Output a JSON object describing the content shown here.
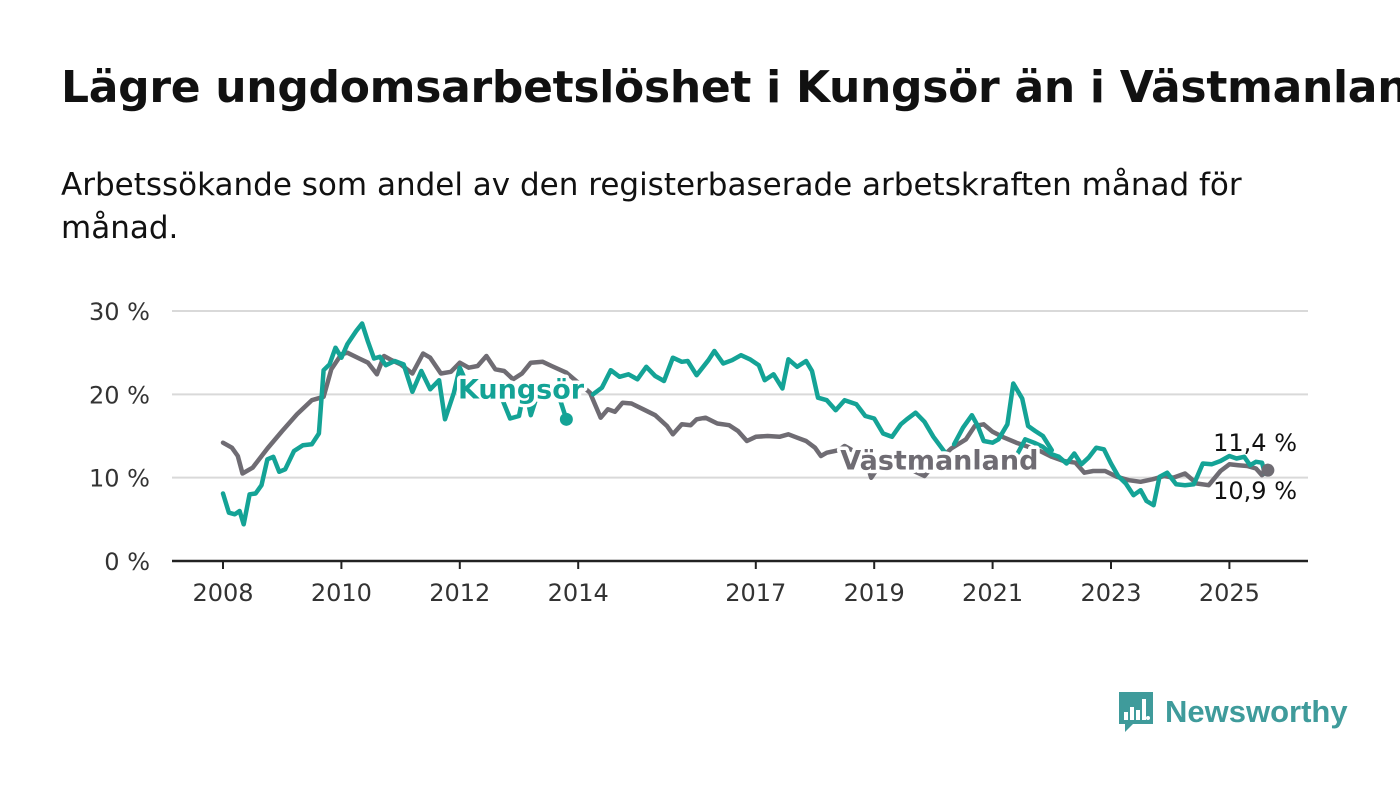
{
  "title": "Lägre ungdomsarbetslöshet i Kungsör än i Västmanland",
  "subtitle": "Arbetssökande som andel av den registerbaserade arbetskraften månad för månad.",
  "brand": {
    "name": "Newsworthy",
    "icon": "bar-chart-speech-bubble-icon",
    "color": "#3f9b9b"
  },
  "chart_data": {
    "type": "line",
    "title": "Lägre ungdomsarbetslöshet i Kungsör än i Västmanland",
    "ylabel": "",
    "xlabel": "",
    "ylim": [
      0,
      30
    ],
    "xlim": [
      2007.2,
      2026.4
    ],
    "y_ticks": [
      0,
      10,
      20,
      30
    ],
    "y_tick_labels": [
      "0 %",
      "10 %",
      "20 %",
      "30 %"
    ],
    "x_ticks": [
      2008,
      2010,
      2012,
      2014,
      2017,
      2019,
      2021,
      2023,
      2025
    ],
    "x_tick_labels": [
      "2008",
      "2010",
      "2012",
      "2014",
      "2017",
      "2019",
      "2021",
      "2023",
      "2025"
    ],
    "grid": "horizontal",
    "legend": "inline labels",
    "series": [
      {
        "name": "Västmanland",
        "color": "#6f6c73",
        "end_label": "10,9 %",
        "points": [
          [
            2008.0,
            14.2
          ],
          [
            2008.15,
            13.6
          ],
          [
            2008.25,
            12.6
          ],
          [
            2008.33,
            10.5
          ],
          [
            2008.5,
            11.2
          ],
          [
            2008.75,
            13.5
          ],
          [
            2009.0,
            15.6
          ],
          [
            2009.25,
            17.6
          ],
          [
            2009.5,
            19.3
          ],
          [
            2009.7,
            19.7
          ],
          [
            2009.83,
            23.0
          ],
          [
            2010.0,
            24.8
          ],
          [
            2010.1,
            25.0
          ],
          [
            2010.3,
            24.3
          ],
          [
            2010.45,
            23.8
          ],
          [
            2010.6,
            22.4
          ],
          [
            2010.72,
            24.6
          ],
          [
            2010.85,
            24.1
          ],
          [
            2011.0,
            23.6
          ],
          [
            2011.2,
            22.5
          ],
          [
            2011.38,
            24.9
          ],
          [
            2011.5,
            24.4
          ],
          [
            2011.68,
            22.5
          ],
          [
            2011.85,
            22.7
          ],
          [
            2012.0,
            23.8
          ],
          [
            2012.15,
            23.2
          ],
          [
            2012.3,
            23.4
          ],
          [
            2012.45,
            24.6
          ],
          [
            2012.6,
            23.0
          ],
          [
            2012.75,
            22.8
          ],
          [
            2012.9,
            21.8
          ],
          [
            2013.05,
            22.5
          ],
          [
            2013.2,
            23.8
          ],
          [
            2013.4,
            23.9
          ],
          [
            2013.55,
            23.4
          ],
          [
            2013.8,
            22.6
          ],
          [
            2014.0,
            21.4
          ],
          [
            2014.2,
            20.2
          ],
          [
            2014.38,
            17.2
          ],
          [
            2014.5,
            18.2
          ],
          [
            2014.62,
            17.9
          ],
          [
            2014.75,
            19.0
          ],
          [
            2014.9,
            18.9
          ],
          [
            2015.1,
            18.2
          ],
          [
            2015.3,
            17.5
          ],
          [
            2015.5,
            16.2
          ],
          [
            2015.6,
            15.2
          ],
          [
            2015.75,
            16.4
          ],
          [
            2015.9,
            16.3
          ],
          [
            2016.0,
            17.0
          ],
          [
            2016.15,
            17.2
          ],
          [
            2016.35,
            16.5
          ],
          [
            2016.55,
            16.3
          ],
          [
            2016.7,
            15.6
          ],
          [
            2016.85,
            14.4
          ],
          [
            2017.0,
            14.9
          ],
          [
            2017.2,
            15.0
          ],
          [
            2017.4,
            14.9
          ],
          [
            2017.55,
            15.2
          ],
          [
            2017.7,
            14.8
          ],
          [
            2017.85,
            14.4
          ],
          [
            2018.0,
            13.6
          ],
          [
            2018.1,
            12.6
          ],
          [
            2018.2,
            13.0
          ],
          [
            2018.4,
            13.3
          ],
          [
            2018.5,
            13.8
          ],
          [
            2018.65,
            13.2
          ],
          [
            2018.85,
            12.3
          ],
          [
            2018.95,
            10.0
          ],
          [
            2019.1,
            11.6
          ],
          [
            2019.3,
            12.0
          ],
          [
            2019.5,
            11.4
          ],
          [
            2019.7,
            10.7
          ],
          [
            2019.85,
            10.2
          ],
          [
            2020.0,
            11.5
          ],
          [
            2020.3,
            13.5
          ],
          [
            2020.55,
            14.6
          ],
          [
            2020.7,
            16.2
          ],
          [
            2020.85,
            16.4
          ],
          [
            2021.0,
            15.5
          ],
          [
            2021.2,
            14.8
          ],
          [
            2021.4,
            14.2
          ],
          [
            2021.6,
            13.7
          ],
          [
            2021.8,
            13.2
          ],
          [
            2022.0,
            12.5
          ],
          [
            2022.2,
            12.0
          ],
          [
            2022.4,
            11.8
          ],
          [
            2022.55,
            10.6
          ],
          [
            2022.7,
            10.8
          ],
          [
            2022.9,
            10.8
          ],
          [
            2023.1,
            10.1
          ],
          [
            2023.3,
            9.7
          ],
          [
            2023.5,
            9.5
          ],
          [
            2023.7,
            9.8
          ],
          [
            2023.9,
            10.2
          ],
          [
            2024.05,
            10.0
          ],
          [
            2024.25,
            10.5
          ],
          [
            2024.45,
            9.3
          ],
          [
            2024.65,
            9.1
          ],
          [
            2024.85,
            10.8
          ],
          [
            2025.0,
            11.6
          ],
          [
            2025.15,
            11.5
          ],
          [
            2025.3,
            11.4
          ],
          [
            2025.45,
            11.1
          ],
          [
            2025.55,
            10.3
          ],
          [
            2025.65,
            10.9
          ]
        ]
      },
      {
        "name": "Kungsör",
        "color": "#14a396",
        "end_label": "11,4 %",
        "points": [
          [
            2008.0,
            8.1
          ],
          [
            2008.1,
            5.8
          ],
          [
            2008.2,
            5.6
          ],
          [
            2008.28,
            6.0
          ],
          [
            2008.35,
            4.4
          ],
          [
            2008.45,
            8.0
          ],
          [
            2008.55,
            8.1
          ],
          [
            2008.65,
            9.1
          ],
          [
            2008.75,
            12.2
          ],
          [
            2008.85,
            12.5
          ],
          [
            2008.95,
            10.7
          ],
          [
            2009.05,
            11.0
          ],
          [
            2009.2,
            13.2
          ],
          [
            2009.35,
            13.9
          ],
          [
            2009.5,
            14.0
          ],
          [
            2009.62,
            15.3
          ],
          [
            2009.7,
            22.9
          ],
          [
            2009.8,
            23.6
          ],
          [
            2009.9,
            25.6
          ],
          [
            2010.0,
            24.4
          ],
          [
            2010.1,
            26.0
          ],
          [
            2010.25,
            27.6
          ],
          [
            2010.35,
            28.5
          ],
          [
            2010.45,
            26.3
          ],
          [
            2010.55,
            24.3
          ],
          [
            2010.65,
            24.5
          ],
          [
            2010.75,
            23.5
          ],
          [
            2010.9,
            24.0
          ],
          [
            2011.05,
            23.6
          ],
          [
            2011.2,
            20.3
          ],
          [
            2011.35,
            22.8
          ],
          [
            2011.5,
            20.6
          ],
          [
            2011.65,
            21.7
          ],
          [
            2011.75,
            17.0
          ],
          [
            2011.9,
            20.2
          ],
          [
            2012.0,
            23.2
          ],
          [
            2012.15,
            20.8
          ],
          [
            2012.3,
            21.5
          ],
          [
            2012.45,
            19.8
          ],
          [
            2012.55,
            21.4
          ],
          [
            2012.7,
            19.7
          ],
          [
            2012.85,
            17.1
          ],
          [
            2013.0,
            17.4
          ],
          [
            2013.1,
            20.9
          ],
          [
            2013.2,
            17.5
          ],
          [
            2013.35,
            20.8
          ],
          [
            2013.5,
            20.0
          ],
          [
            2013.65,
            20.3
          ],
          [
            2013.8,
            17.0
          ]
        ]
      },
      {
        "name": "Kungsör",
        "color": "#14a396",
        "points": [
          [
            2014.25,
            20.0
          ],
          [
            2014.4,
            20.8
          ],
          [
            2014.55,
            22.9
          ],
          [
            2014.7,
            22.1
          ],
          [
            2014.85,
            22.4
          ],
          [
            2015.0,
            21.8
          ],
          [
            2015.15,
            23.3
          ],
          [
            2015.3,
            22.2
          ],
          [
            2015.45,
            21.6
          ],
          [
            2015.6,
            24.4
          ],
          [
            2015.75,
            23.9
          ],
          [
            2015.85,
            24.0
          ],
          [
            2016.0,
            22.3
          ],
          [
            2016.2,
            24.1
          ],
          [
            2016.3,
            25.2
          ],
          [
            2016.45,
            23.7
          ],
          [
            2016.6,
            24.1
          ],
          [
            2016.75,
            24.7
          ],
          [
            2016.9,
            24.2
          ],
          [
            2017.05,
            23.5
          ],
          [
            2017.15,
            21.7
          ],
          [
            2017.3,
            22.4
          ],
          [
            2017.45,
            20.7
          ],
          [
            2017.55,
            24.2
          ],
          [
            2017.7,
            23.3
          ],
          [
            2017.85,
            24.0
          ],
          [
            2017.95,
            22.8
          ],
          [
            2018.05,
            19.6
          ],
          [
            2018.2,
            19.3
          ],
          [
            2018.35,
            18.1
          ],
          [
            2018.5,
            19.3
          ],
          [
            2018.7,
            18.8
          ],
          [
            2018.85,
            17.4
          ],
          [
            2019.0,
            17.1
          ],
          [
            2019.15,
            15.3
          ],
          [
            2019.3,
            14.9
          ],
          [
            2019.45,
            16.4
          ],
          [
            2019.55,
            17.0
          ],
          [
            2019.7,
            17.8
          ],
          [
            2019.85,
            16.7
          ],
          [
            2020.0,
            14.9
          ],
          [
            2020.2,
            13.0
          ]
        ]
      },
      {
        "name": "Kungsör",
        "color": "#14a396",
        "points": [
          [
            2020.35,
            14.0
          ],
          [
            2020.5,
            16.0
          ],
          [
            2020.65,
            17.5
          ],
          [
            2020.75,
            16.2
          ],
          [
            2020.85,
            14.4
          ],
          [
            2021.0,
            14.2
          ],
          [
            2021.1,
            14.6
          ],
          [
            2021.25,
            16.4
          ],
          [
            2021.35,
            21.3
          ],
          [
            2021.5,
            19.5
          ],
          [
            2021.6,
            16.2
          ],
          [
            2021.72,
            15.6
          ],
          [
            2021.85,
            15.0
          ],
          [
            2022.0,
            13.3
          ]
        ]
      },
      {
        "name": "Kungsör",
        "color": "#14a396",
        "points": [
          [
            2021.4,
            12.6
          ],
          [
            2021.55,
            14.6
          ],
          [
            2021.7,
            14.2
          ],
          [
            2021.85,
            13.7
          ],
          [
            2022.0,
            12.8
          ],
          [
            2022.12,
            12.5
          ],
          [
            2022.25,
            11.7
          ],
          [
            2022.38,
            12.9
          ],
          [
            2022.5,
            11.6
          ],
          [
            2022.62,
            12.4
          ],
          [
            2022.75,
            13.6
          ],
          [
            2022.88,
            13.4
          ],
          [
            2023.0,
            11.7
          ],
          [
            2023.12,
            10.2
          ],
          [
            2023.25,
            9.3
          ],
          [
            2023.38,
            7.9
          ],
          [
            2023.5,
            8.5
          ],
          [
            2023.6,
            7.2
          ],
          [
            2023.72,
            6.7
          ],
          [
            2023.82,
            10.1
          ],
          [
            2023.95,
            10.6
          ],
          [
            2024.1,
            9.2
          ],
          [
            2024.25,
            9.1
          ],
          [
            2024.4,
            9.2
          ],
          [
            2024.55,
            11.7
          ],
          [
            2024.7,
            11.6
          ],
          [
            2024.85,
            12.0
          ],
          [
            2025.0,
            12.6
          ],
          [
            2025.12,
            12.3
          ],
          [
            2025.25,
            12.5
          ],
          [
            2025.35,
            11.5
          ],
          [
            2025.45,
            11.9
          ],
          [
            2025.55,
            11.8
          ],
          [
            2025.6,
            10.5
          ],
          [
            2025.65,
            11.4
          ]
        ]
      }
    ],
    "annotations": [
      {
        "text": "Kungsör",
        "series": "Kungsör",
        "x": 2014.1,
        "y": 20.7
      },
      {
        "text": "Västmanland",
        "series": "Västmanland",
        "x": 2020.1,
        "y": 12.2
      }
    ]
  }
}
